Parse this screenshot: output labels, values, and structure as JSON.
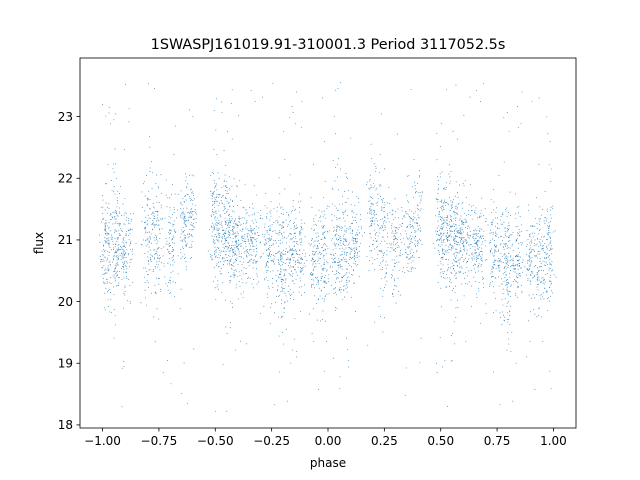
{
  "chart_data": {
    "type": "scatter",
    "title": "1SWASPJ161019.91-310001.3 Period 3117052.5s",
    "xlabel": "phase",
    "ylabel": "flux",
    "xlim": [
      -1.1,
      1.1
    ],
    "ylim": [
      17.95,
      23.95
    ],
    "xticks": [
      -1.0,
      -0.75,
      -0.5,
      -0.25,
      0.0,
      0.25,
      0.5,
      0.75,
      1.0
    ],
    "xtick_labels": [
      "−1.00",
      "−0.75",
      "−0.50",
      "−0.25",
      "0.00",
      "0.25",
      "0.50",
      "0.75",
      "1.00"
    ],
    "yticks": [
      18,
      19,
      20,
      21,
      22,
      23
    ],
    "ytick_labels": [
      "18",
      "19",
      "20",
      "21",
      "22",
      "23"
    ],
    "grid": false,
    "marker_color": "#1f77b4",
    "clusters": [
      {
        "phase": -0.985,
        "width": 0.012,
        "center": 20.85,
        "spread": 0.45,
        "count": 130
      },
      {
        "phase": -0.945,
        "width": 0.012,
        "center": 20.95,
        "spread": 0.55,
        "count": 120
      },
      {
        "phase": -0.905,
        "width": 0.02,
        "center": 20.9,
        "spread": 0.35,
        "count": 160
      },
      {
        "phase": -0.8,
        "width": 0.015,
        "center": 21.1,
        "spread": 0.5,
        "count": 110
      },
      {
        "phase": -0.755,
        "width": 0.015,
        "center": 21.0,
        "spread": 0.45,
        "count": 100
      },
      {
        "phase": -0.7,
        "width": 0.012,
        "center": 20.9,
        "spread": 0.45,
        "count": 90
      },
      {
        "phase": -0.64,
        "width": 0.015,
        "center": 21.3,
        "spread": 0.35,
        "count": 110
      },
      {
        "phase": -0.6,
        "width": 0.01,
        "center": 21.3,
        "spread": 0.3,
        "count": 60
      },
      {
        "phase": -0.5,
        "width": 0.012,
        "center": 21.3,
        "spread": 0.45,
        "count": 130
      },
      {
        "phase": -0.455,
        "width": 0.02,
        "center": 21.2,
        "spread": 0.4,
        "count": 220
      },
      {
        "phase": -0.4,
        "width": 0.025,
        "center": 20.9,
        "spread": 0.35,
        "count": 190
      },
      {
        "phase": -0.33,
        "width": 0.02,
        "center": 20.95,
        "spread": 0.35,
        "count": 140
      },
      {
        "phase": -0.26,
        "width": 0.015,
        "center": 20.9,
        "spread": 0.35,
        "count": 110
      },
      {
        "phase": -0.21,
        "width": 0.015,
        "center": 20.7,
        "spread": 0.45,
        "count": 150
      },
      {
        "phase": -0.16,
        "width": 0.015,
        "center": 20.8,
        "spread": 0.35,
        "count": 120
      },
      {
        "phase": -0.12,
        "width": 0.012,
        "center": 20.8,
        "spread": 0.35,
        "count": 90
      },
      {
        "phase": -0.06,
        "width": 0.012,
        "center": 20.7,
        "spread": 0.4,
        "count": 100
      },
      {
        "phase": -0.02,
        "width": 0.012,
        "center": 20.75,
        "spread": 0.45,
        "count": 110
      },
      {
        "phase": 0.04,
        "width": 0.015,
        "center": 20.8,
        "spread": 0.45,
        "count": 130
      },
      {
        "phase": 0.08,
        "width": 0.015,
        "center": 20.85,
        "spread": 0.45,
        "count": 130
      },
      {
        "phase": 0.12,
        "width": 0.012,
        "center": 21.0,
        "spread": 0.3,
        "count": 90
      },
      {
        "phase": 0.2,
        "width": 0.015,
        "center": 21.3,
        "spread": 0.45,
        "count": 110
      },
      {
        "phase": 0.245,
        "width": 0.015,
        "center": 21.0,
        "spread": 0.45,
        "count": 100
      },
      {
        "phase": 0.3,
        "width": 0.012,
        "center": 20.9,
        "spread": 0.45,
        "count": 90
      },
      {
        "phase": 0.36,
        "width": 0.015,
        "center": 21.1,
        "spread": 0.35,
        "count": 110
      },
      {
        "phase": 0.4,
        "width": 0.01,
        "center": 21.35,
        "spread": 0.3,
        "count": 60
      },
      {
        "phase": 0.5,
        "width": 0.012,
        "center": 21.2,
        "spread": 0.45,
        "count": 120
      },
      {
        "phase": 0.545,
        "width": 0.02,
        "center": 21.1,
        "spread": 0.4,
        "count": 220
      },
      {
        "phase": 0.6,
        "width": 0.025,
        "center": 20.95,
        "spread": 0.35,
        "count": 190
      },
      {
        "phase": 0.67,
        "width": 0.02,
        "center": 20.9,
        "spread": 0.35,
        "count": 140
      },
      {
        "phase": 0.74,
        "width": 0.015,
        "center": 20.8,
        "spread": 0.35,
        "count": 110
      },
      {
        "phase": 0.79,
        "width": 0.015,
        "center": 20.65,
        "spread": 0.45,
        "count": 150
      },
      {
        "phase": 0.84,
        "width": 0.015,
        "center": 20.7,
        "spread": 0.35,
        "count": 120
      },
      {
        "phase": 0.9,
        "width": 0.012,
        "center": 20.75,
        "spread": 0.35,
        "count": 90
      },
      {
        "phase": 0.94,
        "width": 0.012,
        "center": 20.7,
        "spread": 0.4,
        "count": 100
      },
      {
        "phase": 0.98,
        "width": 0.012,
        "center": 20.75,
        "spread": 0.45,
        "count": 110
      }
    ],
    "outlier_fraction": 0.06,
    "outlier_range": [
      18.2,
      23.6
    ]
  }
}
